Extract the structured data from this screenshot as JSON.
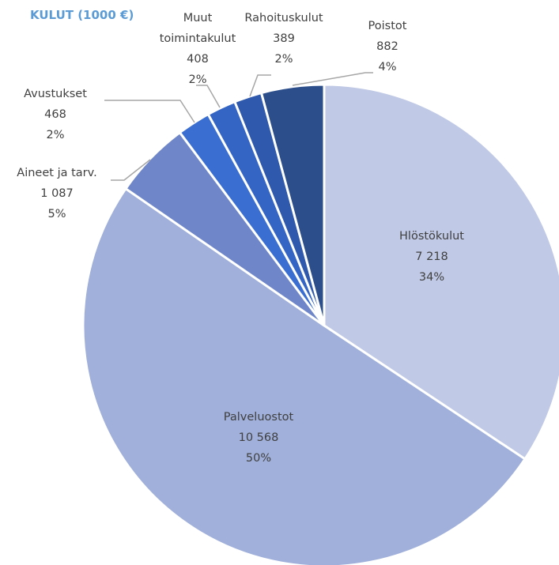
{
  "chart_data": {
    "type": "pie",
    "title": "KULUT (1000 €)",
    "categories": [
      "Hlöstökulut",
      "Palveluostot",
      "Aineet ja tarv.",
      "Avustukset",
      "Muut toimintakulut",
      "Rahoituskulut",
      "Poistot"
    ],
    "values": [
      7218,
      10568,
      1087,
      468,
      408,
      389,
      882
    ],
    "value_labels": [
      "7 218",
      "10 568",
      "1 087",
      "468",
      "408",
      "389",
      "882"
    ],
    "percent_labels": [
      "34%",
      "50%",
      "5%",
      "2%",
      "2%",
      "2%",
      "4%"
    ],
    "colors": [
      "#c0c9e5",
      "#a0b0da",
      "#6f87c9",
      "#3a6fd1",
      "#3465c5",
      "#2f59ad",
      "#2c4f8c"
    ]
  }
}
